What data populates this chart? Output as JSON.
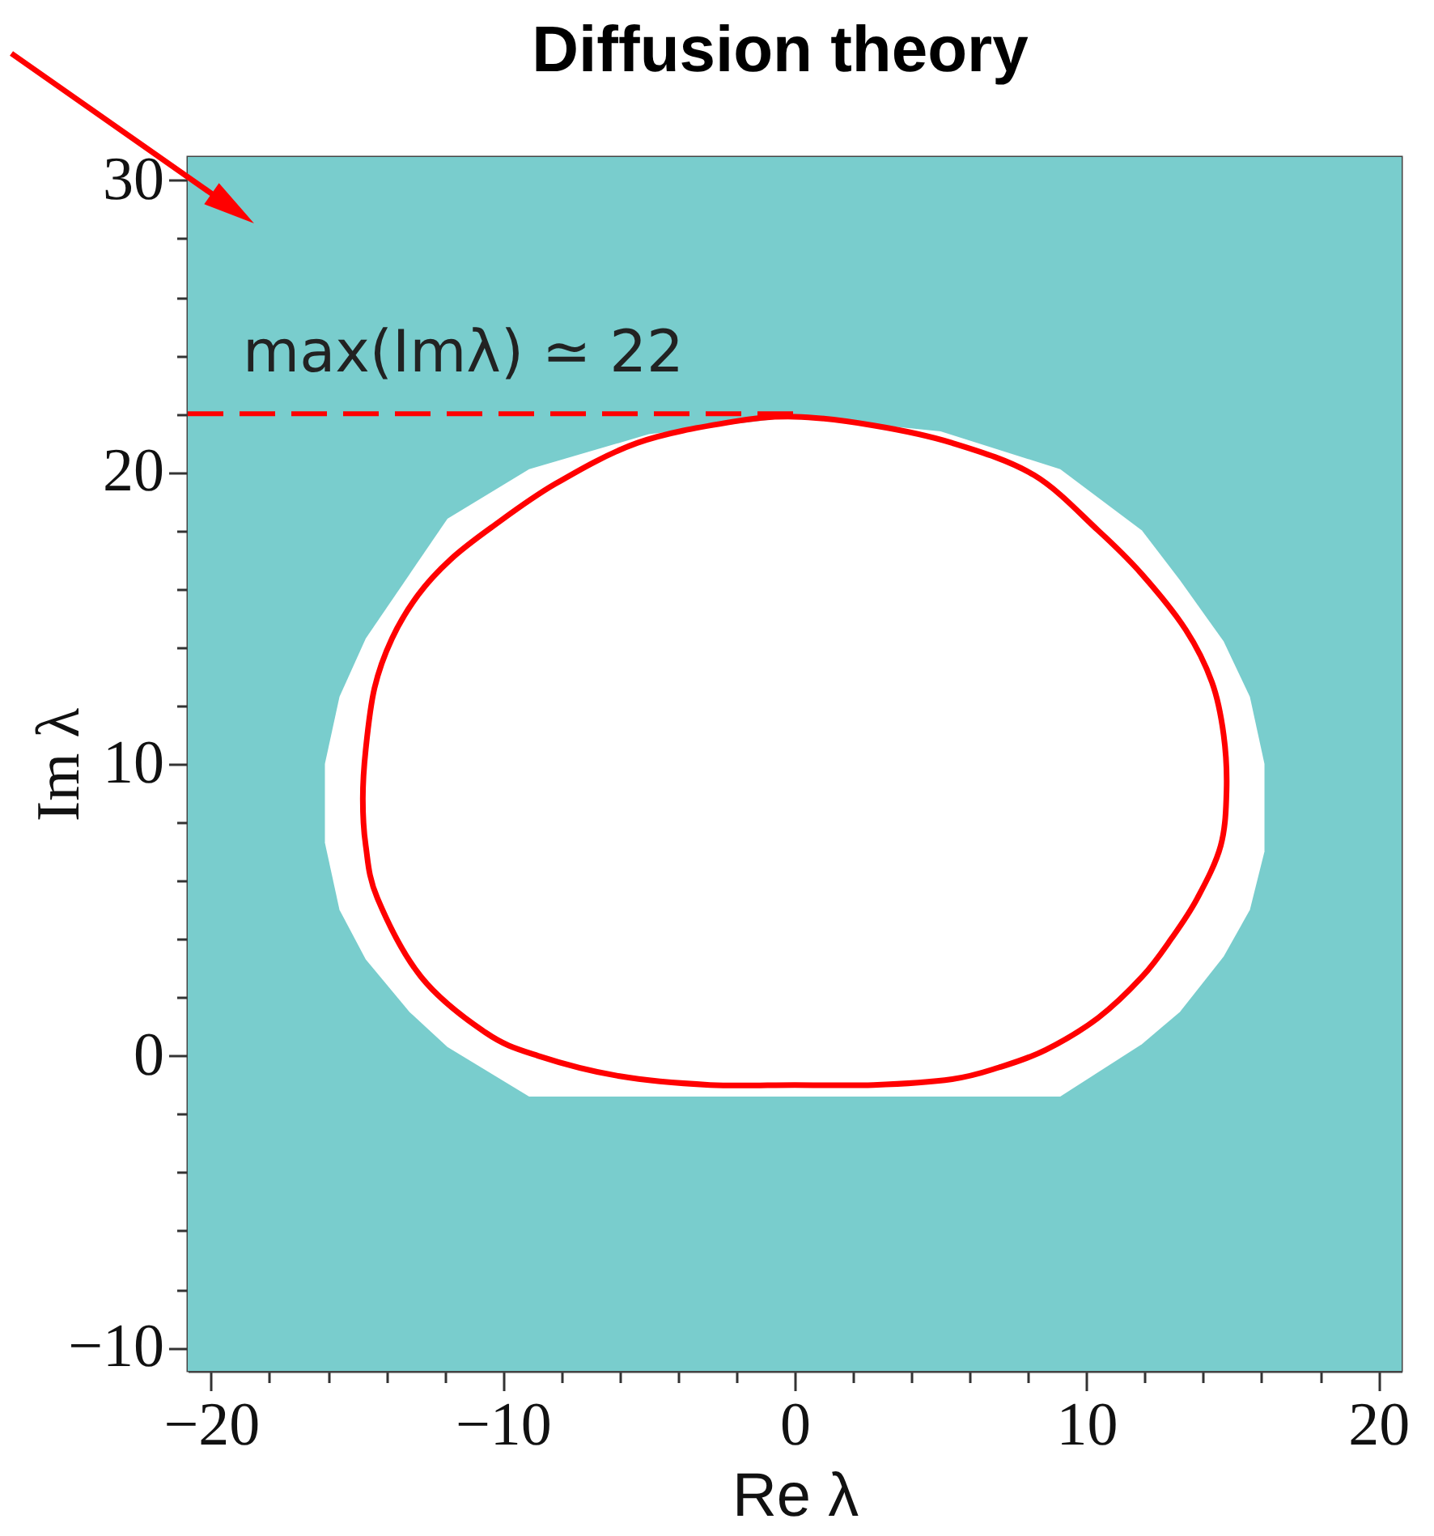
{
  "chart_data": {
    "type": "line",
    "title": "Diffusion theory",
    "xlabel": "Re λ",
    "ylabel": "Im λ",
    "xlim": [
      -20.8,
      20.8
    ],
    "ylim": [
      -10.8,
      30.8
    ],
    "xticks": [
      -20,
      {
        "value": -18,
        "label": null
      },
      {
        "value": -16,
        "label": null
      },
      {
        "value": -14,
        "label": null
      },
      {
        "value": -12,
        "label": null
      },
      -10,
      {
        "value": -8,
        "label": null
      },
      {
        "value": -6,
        "label": null
      },
      {
        "value": -4,
        "label": null
      },
      {
        "value": -2,
        "label": null
      },
      0,
      {
        "value": 2,
        "label": null
      },
      {
        "value": 4,
        "label": null
      },
      {
        "value": 6,
        "label": null
      },
      {
        "value": 8,
        "label": null
      },
      10,
      {
        "value": 12,
        "label": null
      },
      {
        "value": 14,
        "label": null
      },
      {
        "value": 16,
        "label": null
      },
      {
        "value": 18,
        "label": null
      },
      20
    ],
    "yticks": [
      -10,
      {
        "value": -8,
        "label": null
      },
      {
        "value": -6,
        "label": null
      },
      {
        "value": -4,
        "label": null
      },
      {
        "value": -2,
        "label": null
      },
      0,
      {
        "value": 2,
        "label": null
      },
      {
        "value": 4,
        "label": null
      },
      {
        "value": 6,
        "label": null
      },
      {
        "value": 8,
        "label": null
      },
      10,
      {
        "value": 12,
        "label": null
      },
      {
        "value": 14,
        "label": null
      },
      {
        "value": 16,
        "label": null
      },
      {
        "value": 18,
        "label": null
      },
      20,
      {
        "value": 22,
        "label": null
      },
      {
        "value": 24,
        "label": null
      },
      {
        "value": 26,
        "label": null
      },
      {
        "value": 28,
        "label": null
      },
      30
    ],
    "bands": [
      {
        "axis": "x",
        "from": -20.8,
        "to": 20.8,
        "color": "#79cdcd"
      }
    ],
    "series": [
      {
        "color": "#ffffff",
        "x": [
          -16.1,
          -15.6,
          -14.7,
          -13.2,
          -11.9,
          -9.1,
          -5.0,
          0,
          5.0,
          9.1,
          11.9,
          13.2,
          14.7,
          15.6,
          16.1
        ],
        "values": [
          null,
          null,
          null,
          null,
          null,
          null,
          null,
          null,
          null,
          null,
          null,
          null,
          null,
          null,
          null
        ],
        "lower": [
          7.3,
          5.0,
          3.3,
          1.5,
          0.3,
          -1.4,
          -1.4,
          -1.4,
          -1.4,
          -1.4,
          0.4,
          1.5,
          3.4,
          5.0,
          7.0
        ],
        "upper": [
          10.0,
          12.3,
          14.3,
          16.5,
          18.4,
          20.1,
          21.3,
          21.9,
          21.4,
          20.1,
          18.0,
          16.3,
          14.2,
          12.3,
          10.0
        ]
      }
    ],
    "ref_lines": [
      {
        "axis": "y",
        "value": 22,
        "label": "max(Imλ) ≃ 22",
        "color": "#ff0000",
        "line_style": "dashed"
      }
    ]
  }
}
